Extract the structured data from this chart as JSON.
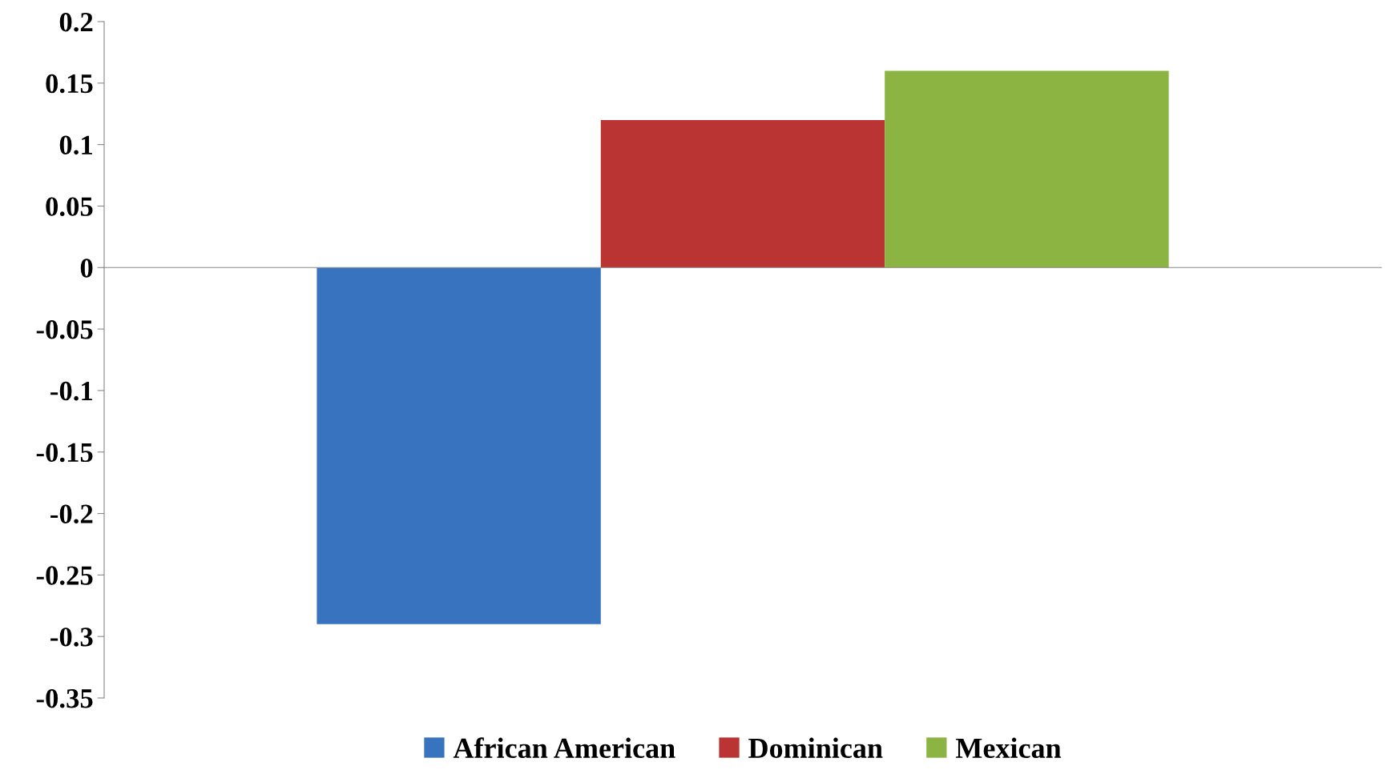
{
  "chart_data": {
    "type": "bar",
    "categories": [
      null
    ],
    "series": [
      {
        "name": "African American",
        "color": "#3873c0",
        "values": [
          -0.29
        ]
      },
      {
        "name": "Dominican",
        "color": "#b93432",
        "values": [
          0.12
        ]
      },
      {
        "name": "Mexican",
        "color": "#8cb443",
        "values": [
          0.16
        ]
      }
    ],
    "ylim": [
      -0.35,
      0.2
    ],
    "yticks": [
      -0.35,
      -0.3,
      -0.25,
      -0.2,
      -0.15,
      -0.1,
      -0.05,
      0,
      0.05,
      0.1,
      0.15,
      0.2
    ],
    "legend": "bottom"
  }
}
